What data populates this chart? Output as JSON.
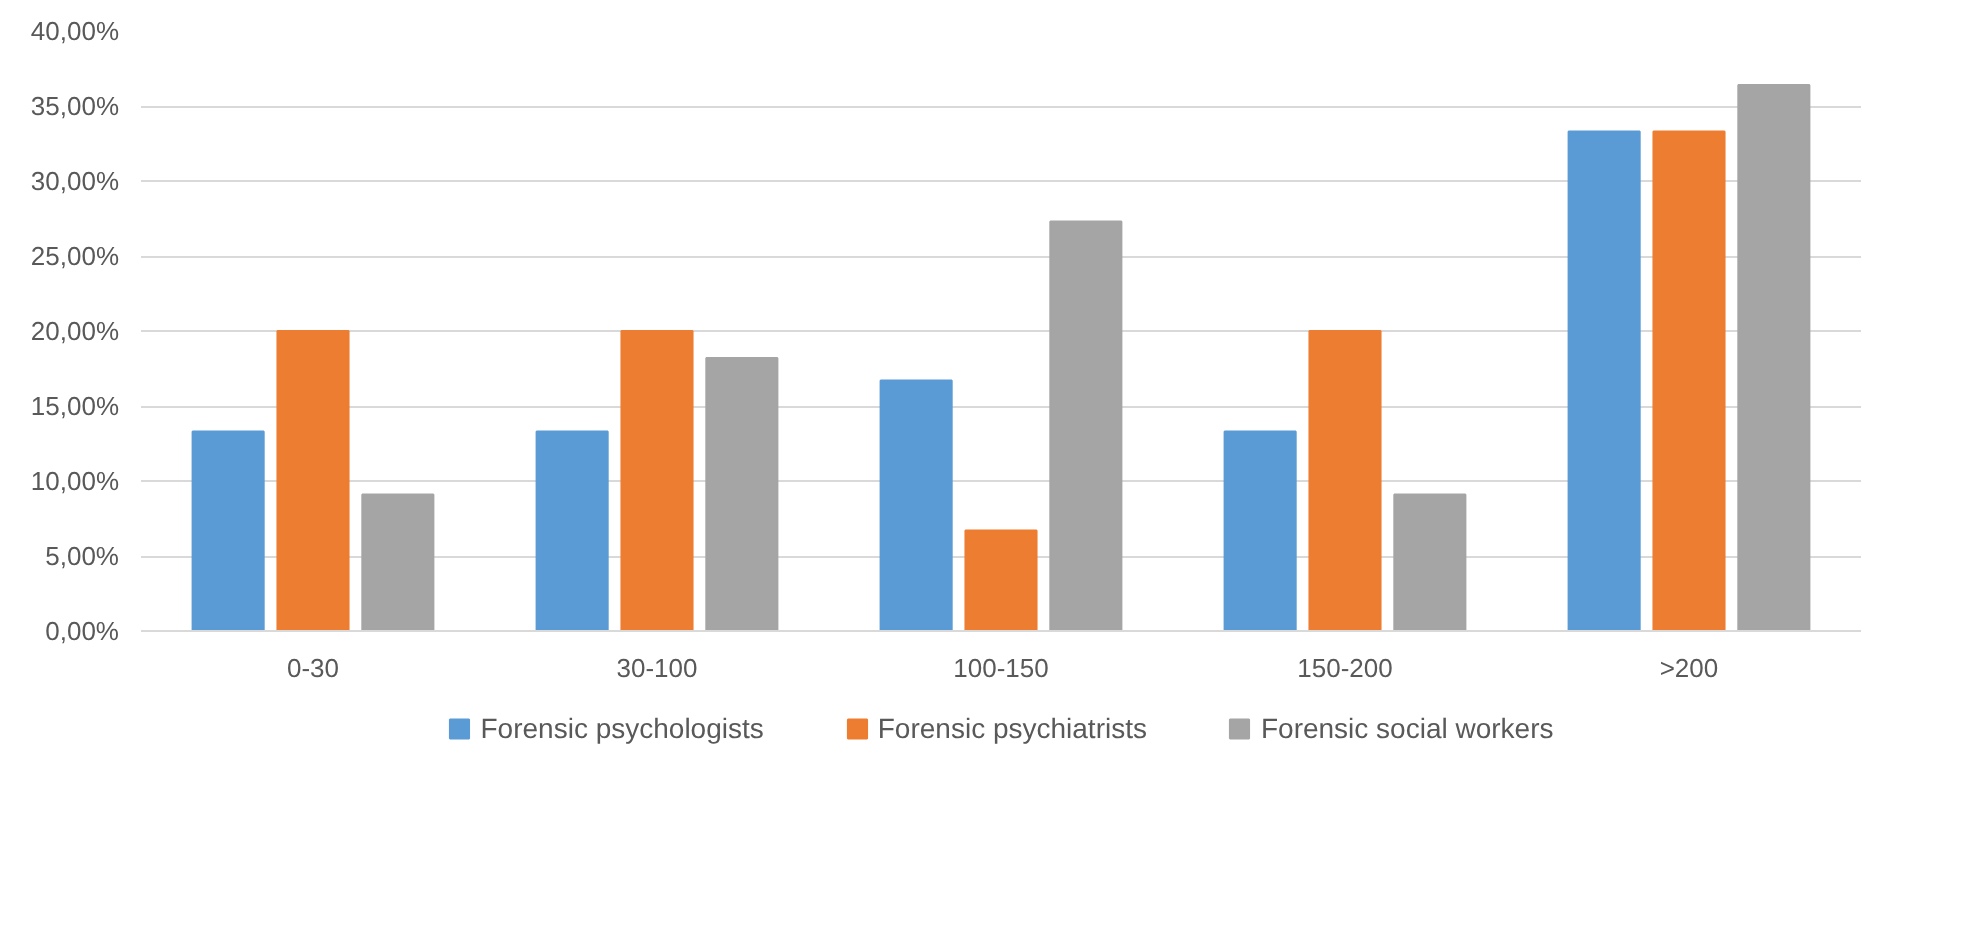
{
  "chart_data": {
    "type": "bar",
    "categories": [
      "0-30",
      "30-100",
      "100-150",
      "150-200",
      ">200"
    ],
    "series": [
      {
        "name": "Forensic psychologists",
        "color": "#5b9bd5",
        "values": [
          13.3,
          13.3,
          16.7,
          13.3,
          33.3
        ]
      },
      {
        "name": "Forensic psychiatrists",
        "color": "#ed7d31",
        "values": [
          20.0,
          20.0,
          6.7,
          20.0,
          33.3
        ]
      },
      {
        "name": "Forensic social workers",
        "color": "#a5a5a5",
        "values": [
          9.1,
          18.2,
          27.3,
          9.1,
          36.4
        ]
      }
    ],
    "ylim": [
      0,
      40
    ],
    "yticks": [
      {
        "value": 0,
        "label": "0,00%"
      },
      {
        "value": 5,
        "label": "5,00%"
      },
      {
        "value": 10,
        "label": "10,00%"
      },
      {
        "value": 15,
        "label": "15,00%"
      },
      {
        "value": 20,
        "label": "20,00%"
      },
      {
        "value": 25,
        "label": "25,00%"
      },
      {
        "value": 30,
        "label": "30,00%"
      },
      {
        "value": 35,
        "label": "35,00%"
      },
      {
        "value": 40,
        "label": "40,00%"
      }
    ],
    "grid": "y",
    "legend": "bottom"
  }
}
